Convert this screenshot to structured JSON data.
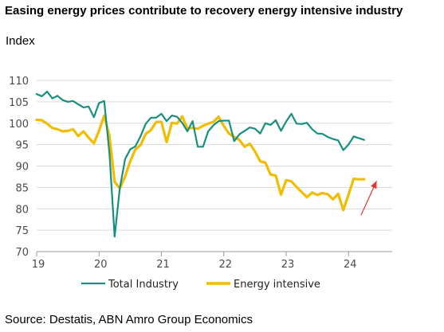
{
  "title": "Easing energy prices contribute to recovery energy intensive industry",
  "unit_label": "Index",
  "source": "Source: Destatis, ABN Amro Group Economics",
  "colors": {
    "total_industry": "#17907f",
    "energy_intensive": "#f2bc00",
    "arrow": "#e8322b",
    "grid": "#d9d9d9"
  },
  "chart_data": {
    "type": "line",
    "title": "Easing energy prices contribute to recovery energy intensive industry",
    "ylabel": "Index",
    "xlabel": "",
    "ylim": [
      70,
      110
    ],
    "xlim": [
      2019.0,
      2024.7
    ],
    "y_ticks": [
      70,
      75,
      80,
      85,
      90,
      95,
      100,
      105,
      110
    ],
    "x_ticks": [
      {
        "value": 2019,
        "label": "19"
      },
      {
        "value": 2020,
        "label": "20"
      },
      {
        "value": 2021,
        "label": "21"
      },
      {
        "value": 2022,
        "label": "22"
      },
      {
        "value": 2023,
        "label": "23"
      },
      {
        "value": 2024,
        "label": "24"
      }
    ],
    "grid": true,
    "legend_position": "bottom",
    "annotations": [
      {
        "type": "arrow",
        "direction": "up-right",
        "from": [
          2024.2,
          78.5
        ],
        "to": [
          2024.45,
          86.5
        ]
      }
    ],
    "series": [
      {
        "name": "Total Industry",
        "x": [
          2019.0,
          2019.083,
          2019.167,
          2019.25,
          2019.333,
          2019.417,
          2019.5,
          2019.583,
          2019.667,
          2019.75,
          2019.833,
          2019.917,
          2020.0,
          2020.083,
          2020.167,
          2020.25,
          2020.333,
          2020.417,
          2020.5,
          2020.583,
          2020.667,
          2020.75,
          2020.833,
          2020.917,
          2021.0,
          2021.083,
          2021.167,
          2021.25,
          2021.333,
          2021.417,
          2021.5,
          2021.583,
          2021.667,
          2021.75,
          2021.833,
          2021.917,
          2022.0,
          2022.083,
          2022.167,
          2022.25,
          2022.333,
          2022.417,
          2022.5,
          2022.583,
          2022.667,
          2022.75,
          2022.833,
          2022.917,
          2023.0,
          2023.083,
          2023.167,
          2023.25,
          2023.333,
          2023.417,
          2023.5,
          2023.583,
          2023.667,
          2023.75,
          2023.833,
          2023.917,
          2024.0,
          2024.083,
          2024.167,
          2024.25
        ],
        "values": [
          106.8,
          106.3,
          107.4,
          105.8,
          106.4,
          105.4,
          105.0,
          105.2,
          104.4,
          103.7,
          103.9,
          101.4,
          104.7,
          105.2,
          93.0,
          73.5,
          84.8,
          91.6,
          93.9,
          94.6,
          97.0,
          99.9,
          101.3,
          101.3,
          102.2,
          100.5,
          101.8,
          101.5,
          100.1,
          98.1,
          100.5,
          94.5,
          94.5,
          98.1,
          99.5,
          100.5,
          100.6,
          100.6,
          95.8,
          97.4,
          98.2,
          99.0,
          98.7,
          97.6,
          100.0,
          99.6,
          100.7,
          98.2,
          100.4,
          102.2,
          99.9,
          99.8,
          100.1,
          98.6,
          97.6,
          97.5,
          96.8,
          96.3,
          96.0,
          93.7,
          95.0,
          96.9,
          96.5,
          96.1
        ],
        "values_display_end": 2024.25
      },
      {
        "name": "Energy intensive",
        "x": [
          2019.0,
          2019.083,
          2019.167,
          2019.25,
          2019.333,
          2019.417,
          2019.5,
          2019.583,
          2019.667,
          2019.75,
          2019.833,
          2019.917,
          2020.0,
          2020.083,
          2020.167,
          2020.25,
          2020.333,
          2020.417,
          2020.5,
          2020.583,
          2020.667,
          2020.75,
          2020.833,
          2020.917,
          2021.0,
          2021.083,
          2021.167,
          2021.25,
          2021.333,
          2021.417,
          2021.5,
          2021.583,
          2021.667,
          2021.75,
          2021.833,
          2021.917,
          2022.0,
          2022.083,
          2022.167,
          2022.25,
          2022.333,
          2022.417,
          2022.5,
          2022.583,
          2022.667,
          2022.75,
          2022.833,
          2022.917,
          2023.0,
          2023.083,
          2023.167,
          2023.25,
          2023.333,
          2023.417,
          2023.5,
          2023.583,
          2023.667,
          2023.75,
          2023.833,
          2023.917,
          2024.0,
          2024.083,
          2024.167,
          2024.25
        ],
        "values": [
          100.8,
          100.7,
          99.9,
          98.9,
          98.6,
          98.1,
          98.2,
          98.6,
          97.0,
          98.1,
          96.6,
          95.3,
          98.2,
          101.8,
          97.0,
          86.3,
          84.8,
          87.5,
          91.1,
          93.9,
          94.9,
          97.5,
          98.4,
          100.3,
          100.3,
          95.6,
          100.1,
          99.9,
          101.6,
          98.8,
          98.9,
          98.7,
          99.4,
          99.9,
          100.3,
          101.5,
          99.4,
          97.6,
          96.8,
          96.1,
          94.5,
          95.2,
          93.4,
          91.1,
          90.8,
          88.0,
          87.8,
          83.3,
          86.7,
          86.4,
          85.1,
          83.9,
          82.7,
          83.8,
          83.2,
          83.7,
          83.4,
          82.2,
          83.5,
          79.7,
          83.3,
          87.0,
          86.9,
          86.9
        ]
      }
    ]
  }
}
